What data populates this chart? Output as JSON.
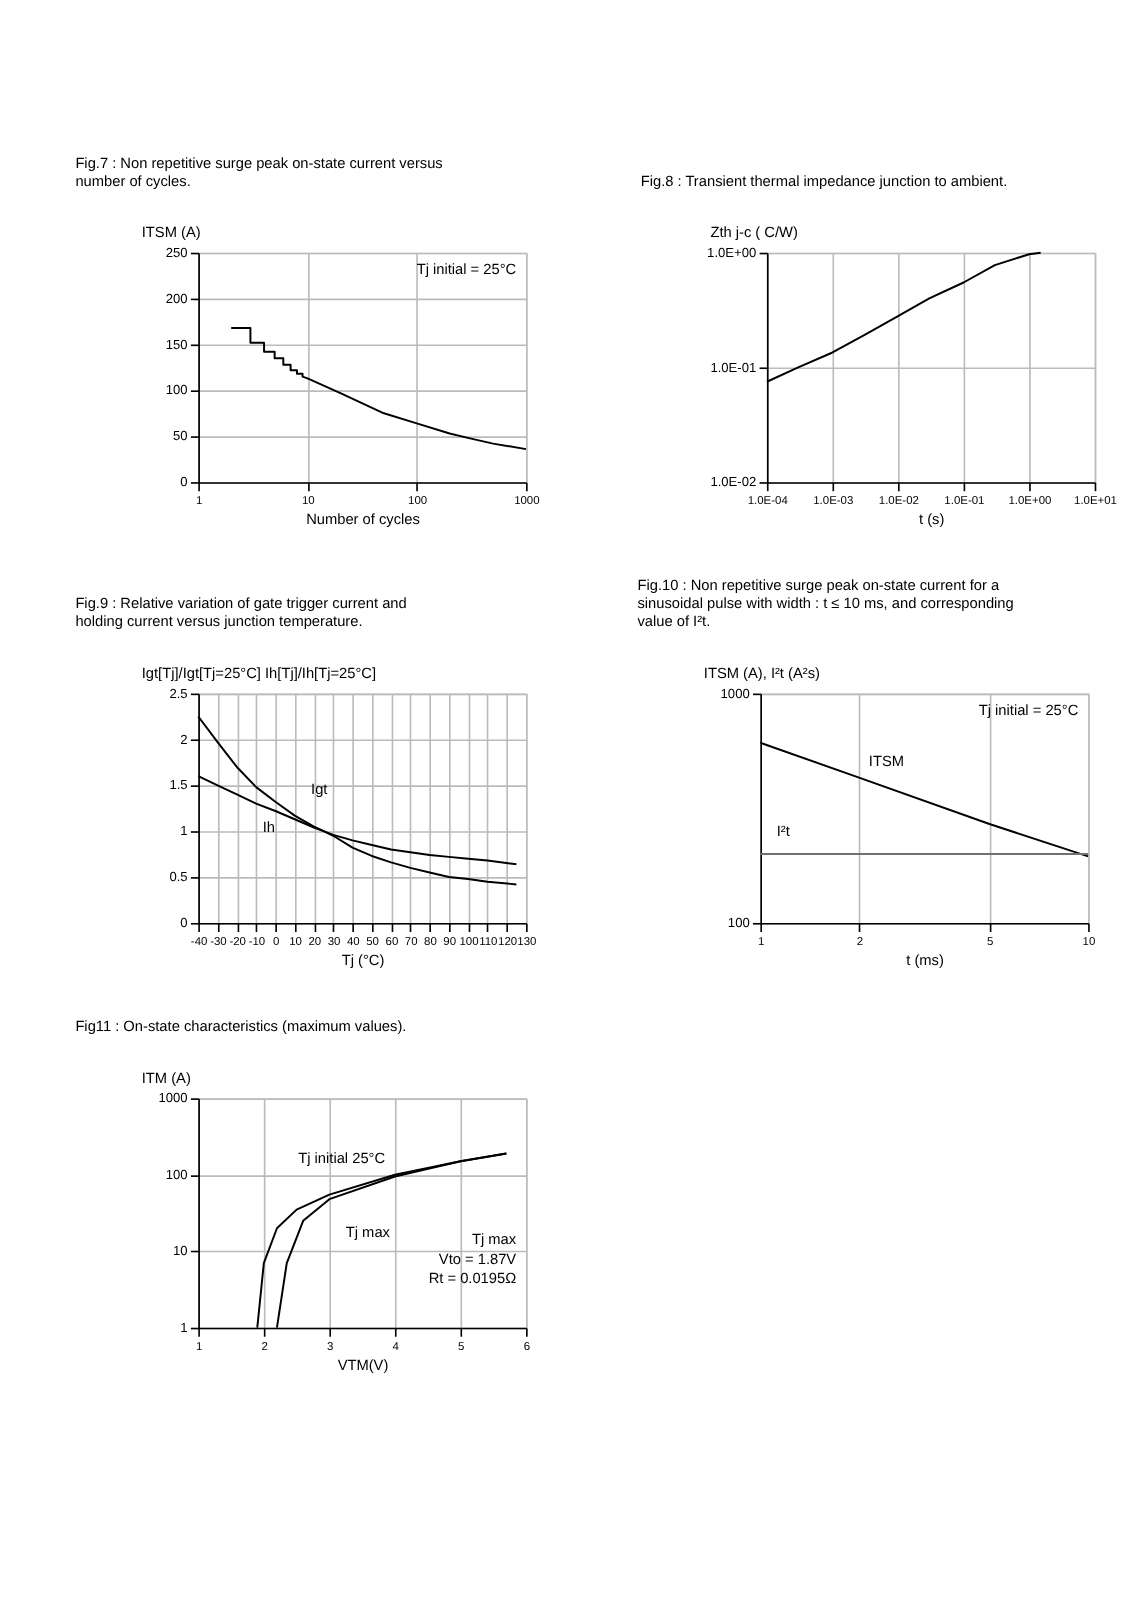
{
  "chart_data": [
    {
      "type": "line",
      "title": "Fig.7 :  Non repetitive surge peak on-state current versus number of cycles.",
      "xlabel": "Number of cycles",
      "ylabel": "ITSM (A)",
      "log": "x",
      "xlim": [
        1,
        1000
      ],
      "xticks": [
        1,
        10,
        100,
        1000
      ],
      "ylim": [
        0,
        250
      ],
      "yticks": [
        0,
        50,
        100,
        150,
        200,
        250
      ],
      "grid": true,
      "legend": false,
      "annotations": [
        "Tj initial = 25°C"
      ],
      "series": [
        {
          "color": "#000000",
          "x": [
            2,
            3,
            3,
            4,
            4,
            5,
            5,
            6,
            6,
            7,
            7,
            8,
            8,
            9,
            9,
            10,
            20,
            50,
            100,
            200,
            300,
            500,
            1000
          ],
          "values": [
            168,
            168,
            152,
            152,
            142,
            142,
            135,
            135,
            128,
            128,
            122,
            122,
            118,
            118,
            115,
            113,
            97,
            75,
            64,
            53,
            48,
            42,
            36
          ]
        }
      ]
    },
    {
      "type": "line",
      "title": "Fig.8 :  Transient thermal impedance junction to ambient.",
      "xlabel": "t (s)",
      "ylabel": "Zth j-c ( C/W)",
      "log": "xy",
      "xlim": [
        0.0001,
        10
      ],
      "xticks": [
        {
          "value": 0.0001,
          "label": "1.0E-04"
        },
        {
          "value": 0.001,
          "label": "1.0E-03"
        },
        {
          "value": 0.01,
          "label": "1.0E-02"
        },
        {
          "value": 0.1,
          "label": "1.0E-01"
        },
        {
          "value": 1,
          "label": "1.0E+00"
        },
        {
          "value": 10,
          "label": "1.0E+01"
        }
      ],
      "ylim": [
        0.01,
        1
      ],
      "yticks": [
        {
          "value": 0.01,
          "label": "1.0E-02"
        },
        {
          "value": 0.1,
          "label": "1.0E-01"
        },
        {
          "value": 1,
          "label": "1.0E+00"
        }
      ],
      "grid": true,
      "legend": false,
      "series": [
        {
          "color": "#000000",
          "x": [
            0.0001,
            0.0003,
            0.001,
            0.003,
            0.01,
            0.03,
            0.1,
            0.3,
            1,
            1.5
          ],
          "values": [
            0.075,
            0.1,
            0.135,
            0.19,
            0.28,
            0.4,
            0.55,
            0.78,
            0.97,
            1.0
          ]
        }
      ]
    },
    {
      "type": "line",
      "title": "Fig.9 :  Relative variation of gate trigger current and holding current versus junction temperature.",
      "xlabel": "Tj (°C)",
      "ylabel": "Igt[Tj]/Igt[Tj=25°C]   Ih[Tj]/Ih[Tj=25°C]",
      "xlim": [
        -40,
        130
      ],
      "xticks": [
        -40,
        -30,
        -20,
        -10,
        0,
        10,
        20,
        30,
        40,
        50,
        60,
        70,
        80,
        90,
        100,
        110,
        120,
        130
      ],
      "ylim": [
        0,
        2.5
      ],
      "yticks": [
        0,
        0.5,
        1,
        1.5,
        2,
        2.5
      ],
      "grid": true,
      "legend": false,
      "series": [
        {
          "name": "Igt",
          "color": "#000000",
          "x": [
            -40,
            -30,
            -20,
            -10,
            0,
            10,
            20,
            25,
            30,
            40,
            50,
            60,
            70,
            80,
            90,
            100,
            110,
            125
          ],
          "values": [
            2.25,
            1.97,
            1.7,
            1.48,
            1.32,
            1.17,
            1.05,
            1.0,
            0.95,
            0.82,
            0.73,
            0.66,
            0.6,
            0.55,
            0.5,
            0.48,
            0.45,
            0.42
          ]
        },
        {
          "name": "Ih",
          "color": "#000000",
          "x": [
            -40,
            -30,
            -20,
            -10,
            0,
            10,
            20,
            25,
            30,
            40,
            50,
            60,
            70,
            80,
            90,
            100,
            110,
            125
          ],
          "values": [
            1.6,
            1.5,
            1.4,
            1.3,
            1.22,
            1.13,
            1.04,
            1.0,
            0.96,
            0.9,
            0.85,
            0.8,
            0.77,
            0.74,
            0.72,
            0.7,
            0.68,
            0.64
          ]
        }
      ]
    },
    {
      "type": "line",
      "title": "Fig.10 : Non repetitive surge peak on-state current for a sinusoidal pulse with width : t ≤ 10 ms, and corresponding value of I²t.",
      "xlabel": "t (ms)",
      "ylabel": "ITSM (A), I²t (A²s)",
      "log": "xy",
      "xlim": [
        1,
        10
      ],
      "xticks": [
        1,
        2,
        5,
        10
      ],
      "ylim": [
        100,
        1000
      ],
      "yticks": [
        100,
        1000
      ],
      "grid": true,
      "legend": false,
      "annotations": [
        "Tj initial = 25°C"
      ],
      "series": [
        {
          "name": "ITSM",
          "color": "#000000",
          "x": [
            1,
            2,
            5,
            10
          ],
          "values": [
            610,
            430,
            270,
            195
          ]
        },
        {
          "name": "I²t",
          "color": "#707070",
          "x": [
            1,
            10
          ],
          "values": [
            200,
            200
          ]
        }
      ]
    },
    {
      "type": "line",
      "title": "Fig11 : On-state characteristics (maximum values).",
      "xlabel": "VTM(V)",
      "ylabel": "ITM (A)",
      "log": "y",
      "xlim": [
        1,
        6
      ],
      "xticks": [
        1,
        2,
        3,
        4,
        5,
        6
      ],
      "ylim": [
        1,
        1000
      ],
      "yticks": [
        1,
        10,
        100,
        1000
      ],
      "grid": true,
      "legend": false,
      "annotations": [
        "Tj max",
        "Vto = 1.87V",
        "Rt = 0.0195Ω"
      ],
      "series": [
        {
          "name": "Tj initial 25°C",
          "color": "#000000",
          "x": [
            1.9,
            2.0,
            2.2,
            2.5,
            3,
            4,
            5,
            5.7
          ],
          "values": [
            1,
            7,
            20,
            35,
            55,
            100,
            150,
            190
          ]
        },
        {
          "name": "Tj max",
          "color": "#000000",
          "x": [
            2.2,
            2.35,
            2.6,
            3,
            4,
            5,
            5.7
          ],
          "values": [
            1,
            7,
            25,
            48,
            95,
            150,
            190
          ]
        }
      ]
    }
  ]
}
